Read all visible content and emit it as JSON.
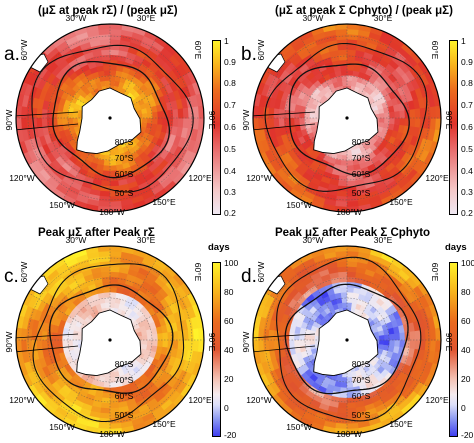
{
  "panels": [
    {
      "letter": "a.",
      "title": "(μΣ at peak rΣ) / (peak μΣ)",
      "field": "ratio_rate",
      "colorbar": "sequential",
      "unit": "",
      "ticks": [
        "1",
        "0.9",
        "0.8",
        "0.7",
        "0.6",
        "0.5",
        "0.4",
        "0.3",
        "0.2"
      ]
    },
    {
      "letter": "b.",
      "title": "(μΣ at peak Σ Cphyto) / (peak μΣ)",
      "field": "ratio_biomass",
      "colorbar": "sequential",
      "unit": "",
      "ticks": [
        "1",
        "0.9",
        "0.8",
        "0.7",
        "0.6",
        "0.5",
        "0.4",
        "0.3",
        "0.2"
      ]
    },
    {
      "letter": "c.",
      "title": "Peak μΣ after Peak rΣ",
      "field": "lag_rate",
      "colorbar": "diverging",
      "unit": "days",
      "ticks": [
        "100",
        "80",
        "60",
        "40",
        "20",
        "0",
        "-20"
      ]
    },
    {
      "letter": "d.",
      "title": "Peak μΣ after Peak Σ Cphyto",
      "field": "lag_biomass",
      "colorbar": "diverging",
      "unit": "days",
      "ticks": [
        "100",
        "80",
        "60",
        "40",
        "20",
        "0",
        "-20"
      ]
    }
  ],
  "grid_labels": {
    "lon_top_left": "30°W",
    "lon_top_right": "30°E",
    "lon_upper_left": "60°W",
    "lon_upper_right": "60°E",
    "lon_left": "90°W",
    "lon_right": "90°E",
    "lon_lower_left": "120°W",
    "lon_lower_right": "120°E",
    "lon_bottom_left": "150°W",
    "lon_bottom_right": "150°E",
    "lon_bottom": "180°W",
    "lat_80": "80°S",
    "lat_70": "70°S",
    "lat_60": "60°S",
    "lat_50": "50°S"
  },
  "colors": {
    "land": "#ffffff",
    "coast": "#000000",
    "front": "#111111"
  }
}
